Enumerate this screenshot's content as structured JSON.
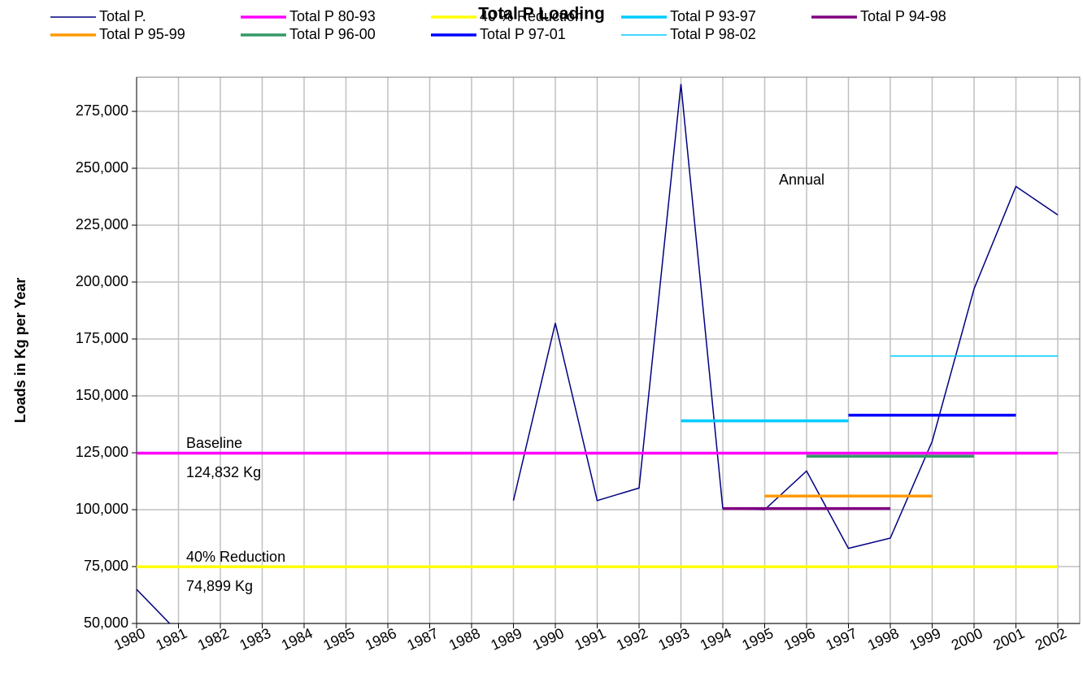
{
  "chart_data": {
    "type": "line",
    "title": "Total P Loading",
    "y_label": "Loads in Kg per Year",
    "categories": [
      "1980",
      "1981",
      "1982",
      "1983",
      "1984",
      "1985",
      "1986",
      "1987",
      "1988",
      "1989",
      "1990",
      "1991",
      "1992",
      "1993",
      "1994",
      "1995",
      "1996",
      "1997",
      "1998",
      "1999",
      "2000",
      "2001",
      "2002"
    ],
    "series": [
      {
        "name": "Total P.",
        "color": "#000080",
        "width": 1.5,
        "values": [
          65000,
          46000,
          null,
          null,
          null,
          null,
          null,
          null,
          null,
          104000,
          182000,
          104000,
          109500,
          287000,
          100500,
          100000,
          117000,
          83000,
          87500,
          130000,
          197000,
          242000,
          229500
        ]
      },
      {
        "name": "Total P 80-93",
        "color": "#ff00ff",
        "width": 3.5,
        "values": [
          124832,
          124832,
          124832,
          124832,
          124832,
          124832,
          124832,
          124832,
          124832,
          124832,
          124832,
          124832,
          124832,
          124832,
          124832,
          124832,
          124832,
          124832,
          124832,
          124832,
          124832,
          124832,
          124832
        ]
      },
      {
        "name": "40 % Reduction",
        "color": "#ffff00",
        "width": 3.5,
        "values": [
          74899,
          74899,
          74899,
          74899,
          74899,
          74899,
          74899,
          74899,
          74899,
          74899,
          74899,
          74899,
          74899,
          74899,
          74899,
          74899,
          74899,
          74899,
          74899,
          74899,
          74899,
          74899,
          74899
        ]
      },
      {
        "name": "Total P 93-97",
        "color": "#00ccff",
        "width": 3.5,
        "values": [
          null,
          null,
          null,
          null,
          null,
          null,
          null,
          null,
          null,
          null,
          null,
          null,
          null,
          139000,
          139000,
          139000,
          139000,
          139000,
          null,
          null,
          null,
          null,
          null
        ]
      },
      {
        "name": "Total P 94-98",
        "color": "#800080",
        "width": 3.5,
        "values": [
          null,
          null,
          null,
          null,
          null,
          null,
          null,
          null,
          null,
          null,
          null,
          null,
          null,
          null,
          100500,
          100500,
          100500,
          100500,
          100500,
          null,
          null,
          null,
          null
        ]
      },
      {
        "name": "Total P 95-99",
        "color": "#ff9900",
        "width": 3.5,
        "values": [
          null,
          null,
          null,
          null,
          null,
          null,
          null,
          null,
          null,
          null,
          null,
          null,
          null,
          null,
          null,
          106000,
          106000,
          106000,
          106000,
          106000,
          null,
          null,
          null
        ]
      },
      {
        "name": "Total P 96-00",
        "color": "#339966",
        "width": 3.5,
        "values": [
          null,
          null,
          null,
          null,
          null,
          null,
          null,
          null,
          null,
          null,
          null,
          null,
          null,
          null,
          null,
          null,
          123500,
          123500,
          123500,
          123500,
          123500,
          null,
          null
        ]
      },
      {
        "name": "Total P 97-01",
        "color": "#0000ff",
        "width": 3.5,
        "values": [
          null,
          null,
          null,
          null,
          null,
          null,
          null,
          null,
          null,
          null,
          null,
          null,
          null,
          null,
          null,
          null,
          null,
          141500,
          141500,
          141500,
          141500,
          141500,
          null
        ]
      },
      {
        "name": "Total P 98-02",
        "color": "#00ccff",
        "width": 1.5,
        "values": [
          null,
          null,
          null,
          null,
          null,
          null,
          null,
          null,
          null,
          null,
          null,
          null,
          null,
          null,
          null,
          null,
          null,
          null,
          167500,
          167500,
          167500,
          167500,
          167500
        ]
      }
    ],
    "ylim": [
      50000,
      290000
    ],
    "yticks": [
      {
        "value": 50000,
        "label": "50,000"
      },
      {
        "value": 75000,
        "label": "75,000"
      },
      {
        "value": 100000,
        "label": "100,000"
      },
      {
        "value": 125000,
        "label": "125,000"
      },
      {
        "value": 150000,
        "label": "150,000"
      },
      {
        "value": 175000,
        "label": "175,000"
      },
      {
        "value": 200000,
        "label": "200,000"
      },
      {
        "value": 225000,
        "label": "225,000"
      },
      {
        "value": 250000,
        "label": "250,000"
      },
      {
        "value": 275000,
        "label": "275,000"
      }
    ],
    "grid": true,
    "annotations": [
      "Annual",
      "Baseline",
      "124,832 Kg",
      "40% Reduction",
      "74,899 Kg"
    ]
  }
}
